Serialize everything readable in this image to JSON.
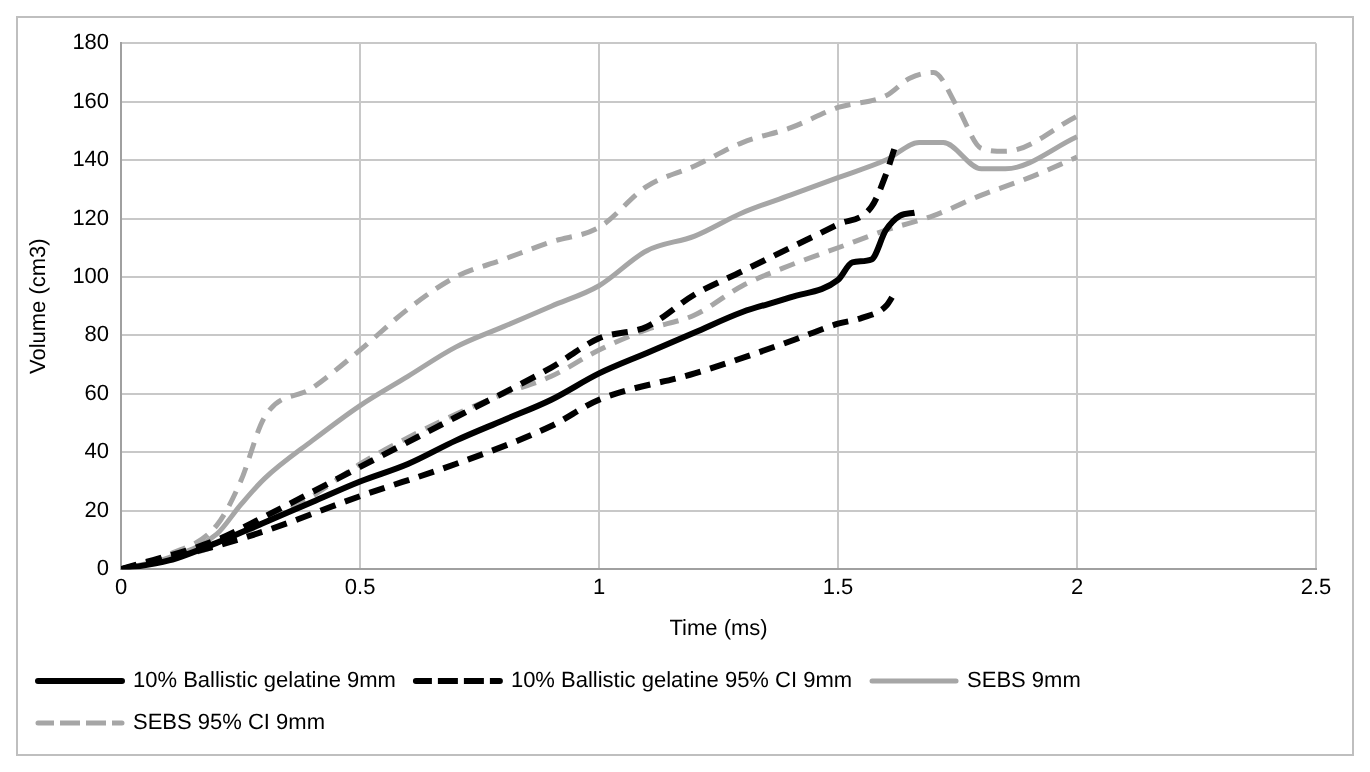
{
  "chart_data": {
    "type": "line",
    "xlabel": "Time (ms)",
    "ylabel": "Volume (cm3)",
    "xlim": [
      0,
      2.5
    ],
    "xticks": [
      0,
      0.5,
      1,
      1.5,
      2,
      2.5
    ],
    "ylim": [
      0,
      180
    ],
    "yticks": [
      0,
      20,
      40,
      60,
      80,
      100,
      120,
      140,
      160,
      180
    ],
    "grid": true,
    "legend": "bottom",
    "marker": "none",
    "series": [
      {
        "name": "10% Ballistic gelatine 9mm",
        "color": "#000000",
        "line_style": "solid",
        "x": [
          0,
          0.1,
          0.2,
          0.3,
          0.4,
          0.5,
          0.6,
          0.7,
          0.8,
          0.9,
          1.0,
          1.1,
          1.2,
          1.3,
          1.4,
          1.5,
          1.53,
          1.57,
          1.6,
          1.63,
          1.66
        ],
        "values": [
          0,
          3,
          9,
          16,
          23,
          30,
          36,
          44,
          51,
          58,
          67,
          74,
          81,
          88,
          93,
          99,
          105,
          106,
          116,
          121,
          122
        ]
      },
      {
        "name": "10% Ballistic gelatine 95% CI 9mm",
        "color": "#000000",
        "line_style": "dashed",
        "x": [
          0,
          0.2,
          0.3,
          0.5,
          0.7,
          0.9,
          1.0,
          1.1,
          1.2,
          1.3,
          1.4,
          1.5,
          1.57,
          1.6,
          1.62
        ],
        "values": [
          0,
          10,
          18,
          35,
          52,
          69,
          79,
          83,
          94,
          102,
          110,
          118,
          124,
          135,
          145
        ]
      },
      {
        "color": "#000000",
        "line_style": "dashed",
        "x": [
          0,
          0.2,
          0.3,
          0.5,
          0.7,
          0.9,
          1.0,
          1.2,
          1.4,
          1.5,
          1.55,
          1.6,
          1.62
        ],
        "values": [
          0,
          8,
          13,
          25,
          36,
          49,
          58,
          67,
          78,
          84,
          86,
          90,
          95
        ]
      },
      {
        "name": "SEBS 9mm",
        "color": "#a6a6a6",
        "line_style": "solid",
        "x": [
          0,
          0.1,
          0.2,
          0.25,
          0.3,
          0.4,
          0.5,
          0.6,
          0.7,
          0.8,
          0.9,
          1.0,
          1.1,
          1.2,
          1.3,
          1.4,
          1.5,
          1.6,
          1.67,
          1.72,
          1.8,
          1.85,
          2.0
        ],
        "values": [
          0,
          4,
          12,
          22,
          31,
          44,
          56,
          66,
          76,
          83,
          90,
          97,
          109,
          114,
          122,
          128,
          134,
          140,
          146,
          146,
          137,
          137,
          148
        ]
      },
      {
        "name": "SEBS 95% CI 9mm",
        "color": "#a6a6a6",
        "line_style": "dashed",
        "x": [
          0,
          0.1,
          0.2,
          0.25,
          0.3,
          0.4,
          0.5,
          0.6,
          0.7,
          0.8,
          0.9,
          1.0,
          1.1,
          1.2,
          1.3,
          1.4,
          1.5,
          1.6,
          1.65,
          1.7,
          1.75,
          1.8,
          1.85,
          2.0
        ],
        "values": [
          0,
          5,
          15,
          30,
          52,
          62,
          75,
          89,
          100,
          106,
          112,
          117,
          131,
          138,
          146,
          151,
          158,
          162,
          168,
          170,
          158,
          144,
          143,
          155
        ]
      },
      {
        "color": "#a6a6a6",
        "line_style": "dashed",
        "x": [
          0,
          0.2,
          0.3,
          0.4,
          0.5,
          0.6,
          0.7,
          0.8,
          0.9,
          1.0,
          1.1,
          1.2,
          1.3,
          1.4,
          1.5,
          1.6,
          1.7,
          1.8,
          1.9,
          2.0
        ],
        "values": [
          0,
          8,
          16,
          25,
          36,
          45,
          53,
          60,
          66,
          75,
          82,
          87,
          97,
          104,
          110,
          116,
          121,
          128,
          134,
          141
        ]
      }
    ]
  }
}
